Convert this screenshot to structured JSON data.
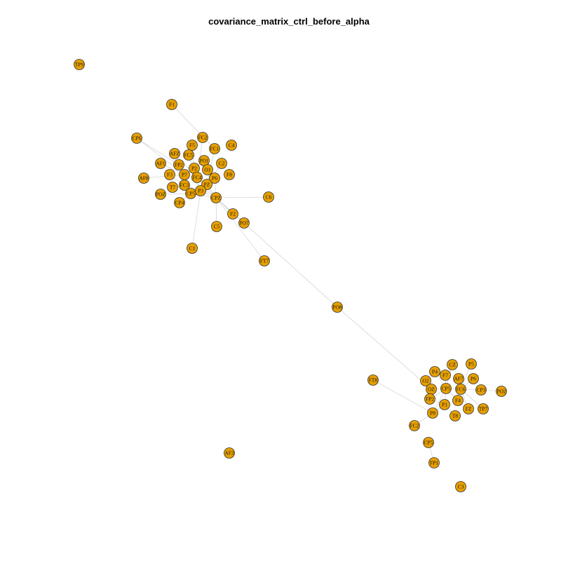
{
  "title": "covariance_matrix_ctrl_before_alpha",
  "colors": {
    "node_fill": "#E69F00",
    "node_stroke": "#333333",
    "edge": "#c8c8c8",
    "background": "#ffffff"
  },
  "nodes": [
    "TP9",
    "F1",
    "CP6",
    "FC2",
    "C4",
    "F5",
    "FC1",
    "AFZ",
    "FC5",
    "AF1",
    "FP2",
    "PO1",
    "C2",
    "P2",
    "O1",
    "AF8",
    "F3",
    "P7",
    "FC4",
    "P6",
    "F8",
    "T7",
    "FC3",
    "PZ",
    "POZ",
    "CP5",
    "P3",
    "CP4",
    "CPZ",
    "C6",
    "F2",
    "C5",
    "PO7",
    "C1",
    "FT7",
    "PO8",
    "P4",
    "CZ",
    "P5",
    "F7",
    "AF7",
    "O2",
    "FT8",
    "OZ",
    "CP5",
    "FC6",
    "P6",
    "CP3",
    "PO2",
    "FP2",
    "F4",
    "P1",
    "FZ",
    "TP7",
    "P8",
    "T8",
    "FC2",
    "CP5",
    "AF3",
    "FP1",
    "C3"
  ],
  "edges": [
    [
      "F1",
      "FC1"
    ],
    [
      "CP6",
      "FP2"
    ],
    [
      "CP6",
      "P7"
    ],
    [
      "FC2",
      "FC4"
    ],
    [
      "F5",
      "P2"
    ],
    [
      "FC1",
      "PZ"
    ],
    [
      "AFZ",
      "FC4"
    ],
    [
      "FC5",
      "P3"
    ],
    [
      "AF1",
      "P7"
    ],
    [
      "FP2",
      "CP5"
    ],
    [
      "PO1",
      "P2"
    ],
    [
      "C2",
      "PZ"
    ],
    [
      "O1",
      "P6"
    ],
    [
      "AF8",
      "P7"
    ],
    [
      "F3",
      "FC3"
    ],
    [
      "P7",
      "CPZ"
    ],
    [
      "FC4",
      "CPZ"
    ],
    [
      "P6",
      "CPZ"
    ],
    [
      "FC3",
      "P3"
    ],
    [
      "PZ",
      "CPZ"
    ],
    [
      "POZ",
      "CP5"
    ],
    [
      "CP5",
      "CPZ"
    ],
    [
      "P3",
      "CPZ"
    ],
    [
      "CP4",
      "CP5"
    ],
    [
      "CPZ",
      "C6"
    ],
    [
      "CPZ",
      "F2"
    ],
    [
      "CPZ",
      "C5"
    ],
    [
      "CPZ",
      "PO7"
    ],
    [
      "P3",
      "C1"
    ],
    [
      "CPZ",
      "FT7"
    ],
    [
      "CPZ",
      "PO8"
    ],
    [
      "PO8",
      "OZ"
    ],
    [
      "P4",
      "CP5"
    ],
    [
      "CZ",
      "CP5"
    ],
    [
      "P5",
      "FC6"
    ],
    [
      "F7",
      "CP5"
    ],
    [
      "AF7",
      "FC6"
    ],
    [
      "O2",
      "OZ"
    ],
    [
      "FT8",
      "P8"
    ],
    [
      "OZ",
      "CP5"
    ],
    [
      "CP5",
      "FC6"
    ],
    [
      "P6",
      "FC6"
    ],
    [
      "FC6",
      "CP3"
    ],
    [
      "CP3",
      "PO2"
    ],
    [
      "FP2",
      "P1"
    ],
    [
      "F4",
      "CP5"
    ],
    [
      "P1",
      "CP5"
    ],
    [
      "FZ",
      "FC6"
    ],
    [
      "TP7",
      "FC6"
    ],
    [
      "P8",
      "P1"
    ],
    [
      "T8",
      "P1"
    ],
    [
      "FC2",
      "P8"
    ],
    [
      "CP5",
      "P8"
    ],
    [
      "FP1",
      "CP5"
    ]
  ]
}
